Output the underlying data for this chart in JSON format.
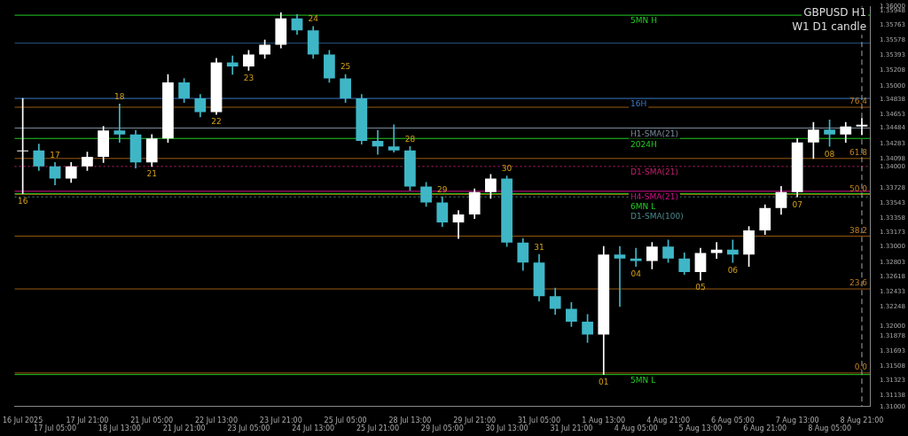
{
  "chart_data": {
    "type": "candlestick",
    "title": "GBPUSD H1",
    "subtitle": "W1 D1 candle",
    "categories": [
      "16 Jul 2025",
      null,
      "17 Jul 05:00",
      null,
      "17 Jul 21:00",
      null,
      "18 Jul 13:00",
      null,
      "21 Jul 05:00",
      null,
      "21 Jul 21:00",
      null,
      "22 Jul 13:00",
      null,
      "23 Jul 05:00",
      null,
      "23 Jul 21:00",
      null,
      "24 Jul 13:00",
      null,
      "25 Jul 05:00",
      null,
      "25 Jul 21:00",
      null,
      "28 Jul 13:00",
      null,
      "29 Jul 05:00",
      null,
      "29 Jul 21:00",
      null,
      "30 Jul 13:00",
      null,
      "31 Jul 05:00",
      null,
      "31 Jul 21:00",
      null,
      "1 Aug 13:00",
      null,
      "4 Aug 05:00",
      null,
      "4 Aug 21:00",
      null,
      "5 Aug 13:00",
      null,
      "6 Aug 05:00",
      null,
      "6 Aug 21:00",
      null,
      "7 Aug 13:00",
      null,
      "8 Aug 05:00",
      null,
      "8 Aug 21:00"
    ],
    "ohlc": [
      [
        1.3419,
        1.3485,
        1.3366,
        1.342
      ],
      [
        1.342,
        1.3428,
        1.3395,
        1.34
      ],
      [
        1.34,
        1.3405,
        1.3377,
        1.3385
      ],
      [
        1.3385,
        1.3405,
        1.338,
        1.34
      ],
      [
        1.34,
        1.3418,
        1.3395,
        1.3412
      ],
      [
        1.3412,
        1.345,
        1.3405,
        1.3445
      ],
      [
        1.3445,
        1.3478,
        1.343,
        1.344
      ],
      [
        1.344,
        1.3445,
        1.3398,
        1.3405
      ],
      [
        1.3405,
        1.344,
        1.34,
        1.3435
      ],
      [
        1.3435,
        1.3515,
        1.343,
        1.3505
      ],
      [
        1.3505,
        1.351,
        1.348,
        1.3485
      ],
      [
        1.3485,
        1.349,
        1.3462,
        1.3468
      ],
      [
        1.3468,
        1.3535,
        1.3465,
        1.353
      ],
      [
        1.353,
        1.3538,
        1.3515,
        1.3525
      ],
      [
        1.3525,
        1.3545,
        1.352,
        1.354
      ],
      [
        1.354,
        1.3558,
        1.3535,
        1.3552
      ],
      [
        1.3552,
        1.3592,
        1.3548,
        1.3585
      ],
      [
        1.3585,
        1.359,
        1.3565,
        1.357
      ],
      [
        1.357,
        1.3575,
        1.3535,
        1.354
      ],
      [
        1.354,
        1.3545,
        1.3505,
        1.351
      ],
      [
        1.351,
        1.3515,
        1.348,
        1.3485
      ],
      [
        1.3485,
        1.349,
        1.3428,
        1.3432
      ],
      [
        1.3432,
        1.3445,
        1.3415,
        1.3425
      ],
      [
        1.3425,
        1.3452,
        1.3418,
        1.342
      ],
      [
        1.342,
        1.3425,
        1.337,
        1.3375
      ],
      [
        1.3375,
        1.338,
        1.335,
        1.3355
      ],
      [
        1.3355,
        1.3362,
        1.3325,
        1.333
      ],
      [
        1.333,
        1.3345,
        1.331,
        1.334
      ],
      [
        1.334,
        1.3372,
        1.3335,
        1.3368
      ],
      [
        1.3368,
        1.339,
        1.336,
        1.3385
      ],
      [
        1.3385,
        1.3388,
        1.33,
        1.3305
      ],
      [
        1.3305,
        1.331,
        1.327,
        1.328
      ],
      [
        1.328,
        1.329,
        1.3232,
        1.3238
      ],
      [
        1.3238,
        1.3248,
        1.3215,
        1.3222
      ],
      [
        1.3222,
        1.323,
        1.32,
        1.3206
      ],
      [
        1.3206,
        1.3215,
        1.318,
        1.319
      ],
      [
        1.319,
        1.33,
        1.314,
        1.329
      ],
      [
        1.329,
        1.33,
        1.3225,
        1.3285
      ],
      [
        1.3285,
        1.3298,
        1.3275,
        1.3282
      ],
      [
        1.3282,
        1.3305,
        1.3272,
        1.33
      ],
      [
        1.33,
        1.3308,
        1.328,
        1.3285
      ],
      [
        1.3285,
        1.3292,
        1.3265,
        1.3268
      ],
      [
        1.3268,
        1.3298,
        1.3258,
        1.3292
      ],
      [
        1.3292,
        1.3305,
        1.3285,
        1.3296
      ],
      [
        1.3296,
        1.3308,
        1.328,
        1.329
      ],
      [
        1.329,
        1.3325,
        1.3275,
        1.332
      ],
      [
        1.332,
        1.3352,
        1.3315,
        1.3348
      ],
      [
        1.3348,
        1.3375,
        1.334,
        1.3368
      ],
      [
        1.3368,
        1.3435,
        1.3362,
        1.343
      ],
      [
        1.343,
        1.3455,
        1.341,
        1.3446
      ],
      [
        1.3446,
        1.3458,
        1.3425,
        1.344
      ],
      [
        1.344,
        1.3455,
        1.343,
        1.345
      ],
      [
        1.345,
        1.346,
        1.344,
        1.3452
      ]
    ],
    "colors": [
      "#ffffff",
      "#3fb6c6",
      "#3fb6c6",
      "#ffffff",
      "#ffffff",
      "#ffffff",
      "#3fb6c6",
      "#3fb6c6",
      "#ffffff",
      "#ffffff",
      "#3fb6c6",
      "#3fb6c6",
      "#ffffff",
      "#3fb6c6",
      "#ffffff",
      "#ffffff",
      "#ffffff",
      "#3fb6c6",
      "#3fb6c6",
      "#3fb6c6",
      "#3fb6c6",
      "#3fb6c6",
      "#3fb6c6",
      "#3fb6c6",
      "#3fb6c6",
      "#3fb6c6",
      "#3fb6c6",
      "#ffffff",
      "#ffffff",
      "#ffffff",
      "#3fb6c6",
      "#3fb6c6",
      "#3fb6c6",
      "#3fb6c6",
      "#3fb6c6",
      "#3fb6c6",
      "#ffffff",
      "#3fb6c6",
      "#3fb6c6",
      "#ffffff",
      "#3fb6c6",
      "#3fb6c6",
      "#ffffff",
      "#ffffff",
      "#3fb6c6",
      "#ffffff",
      "#ffffff",
      "#ffffff",
      "#ffffff",
      "#ffffff",
      "#3fb6c6",
      "#ffffff",
      "#ffffff"
    ],
    "ylim": [
      1.31,
      1.36
    ],
    "yticks": [
      {
        "value": 1.31,
        "label": "1.31000"
      },
      1.31138,
      1.31323,
      1.31508,
      1.31693,
      1.31878,
      {
        "value": 1.32,
        "label": "1.32000"
      },
      1.32248,
      1.32433,
      1.32618,
      1.32803,
      {
        "value": 1.33,
        "label": "1.33000"
      },
      1.33173,
      1.33358,
      1.33543,
      1.33728,
      {
        "value": 1.34,
        "label": "1.34000"
      },
      1.34098,
      1.34283,
      1.34484,
      1.34653,
      1.34838,
      {
        "value": 1.35,
        "label": "1.35000"
      },
      1.35208,
      1.35393,
      1.35578,
      1.35763,
      1.35948,
      {
        "value": 1.36,
        "label": "1.36000"
      }
    ],
    "grid": false,
    "legend": false,
    "ref_lines": [
      {
        "axis": "y",
        "value": 1.3589,
        "label": "5MN H",
        "color": "#22cc22"
      },
      {
        "axis": "y",
        "value": 1.3435,
        "label": "2024H",
        "color": "#22cc22"
      },
      {
        "axis": "y",
        "value": 1.3366,
        "label": "6MN L",
        "color": "#22cc22"
      },
      {
        "axis": "y",
        "value": 1.314,
        "label": "5MN L",
        "color": "#22cc22"
      },
      {
        "axis": "y",
        "value": 1.3485,
        "label": "16H",
        "color": "#3a7ac8"
      },
      {
        "axis": "y",
        "value": 1.3448,
        "label": "H1-SMA(21)",
        "color": "#7a8a9a"
      },
      {
        "axis": "y",
        "value": 1.34,
        "label": "D1-SMA(21)",
        "color": "#c0206a",
        "line_style": "dotted"
      },
      {
        "axis": "y",
        "value": 1.3369,
        "label": "H4-SMA(21)",
        "color": "#d0108a"
      },
      {
        "axis": "y",
        "value": 1.3362,
        "label": "D1-SMA(100)",
        "color": "#4a8a8a",
        "line_style": "dotted"
      },
      {
        "axis": "y",
        "value": 1.3474,
        "color": "#9a5a10"
      },
      {
        "axis": "y",
        "value": 1.341,
        "color": "#9a5a10"
      },
      {
        "axis": "y",
        "value": 1.3365,
        "color": "#9a5a10"
      },
      {
        "axis": "y",
        "value": 1.3313,
        "color": "#9a5a10"
      },
      {
        "axis": "y",
        "value": 1.3247,
        "color": "#9a5a10"
      },
      {
        "axis": "y",
        "value": 1.3142,
        "color": "#9a5a10"
      },
      {
        "axis": "y",
        "value": 1.3554,
        "color": "#2a5a8a"
      },
      {
        "axis": "x",
        "value": "8 Aug 21:00",
        "color": "#aaaaaa",
        "line_style": "dashed"
      }
    ],
    "annotations": [
      "76.4",
      "61.8",
      "50.0",
      "38.2",
      "23.6",
      "0.0",
      {
        "text": "16",
        "x": "16 Jul 2025",
        "y": 1.3366
      },
      {
        "text": "17",
        "x": "17 Jul 05:00",
        "y": 1.3405
      },
      {
        "text": "18",
        "x": "18 Jul 13:00",
        "y": 1.3478
      },
      {
        "text": "21",
        "x": "21 Jul 05:00",
        "y": 1.34
      },
      {
        "text": "22",
        "x": "22 Jul 13:00",
        "y": 1.3465
      },
      {
        "text": "23",
        "x": "23 Jul 05:00",
        "y": 1.352
      },
      {
        "text": "24",
        "x": "24 Jul 13:00",
        "y": 1.3575
      },
      {
        "text": "25",
        "x": "25 Jul 05:00",
        "y": 1.3515
      },
      {
        "text": "28",
        "x": "28 Jul 13:00",
        "y": 1.3425
      },
      {
        "text": "29",
        "x": "29 Jul 05:00",
        "y": 1.3362
      },
      {
        "text": "30",
        "x": "30 Jul 13:00",
        "y": 1.3388
      },
      {
        "text": "31",
        "x": "31 Jul 05:00",
        "y": 1.329
      },
      {
        "text": "01",
        "x": "1 Aug 13:00",
        "y": 1.314
      },
      {
        "text": "04",
        "x": "4 Aug 05:00",
        "y": 1.3275
      },
      {
        "text": "05",
        "x": "5 Aug 13:00",
        "y": 1.3258
      },
      {
        "text": "06",
        "x": "6 Aug 05:00",
        "y": 1.328
      },
      {
        "text": "07",
        "x": "7 Aug 13:00",
        "y": 1.3362
      },
      {
        "text": "08",
        "x": "8 Aug 05:00",
        "y": 1.3425
      }
    ]
  }
}
